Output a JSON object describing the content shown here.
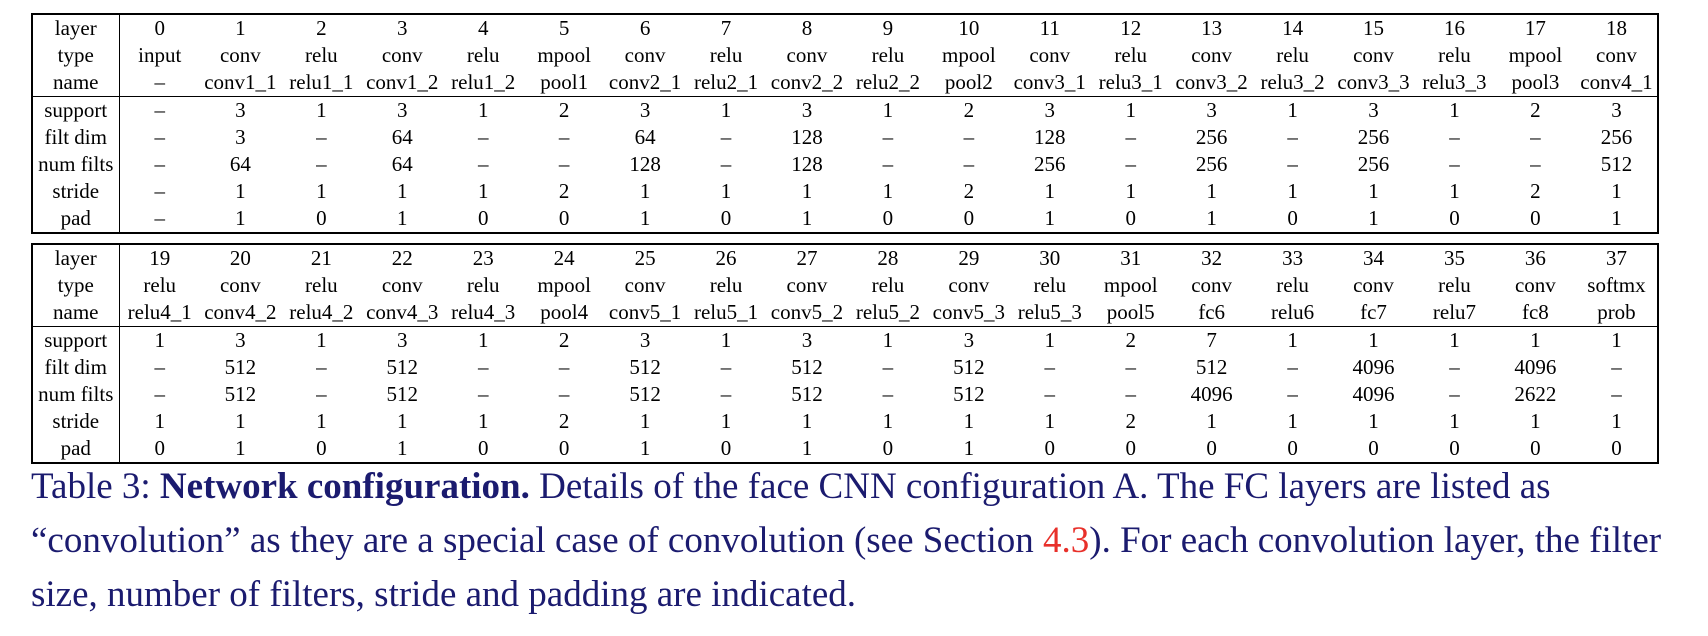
{
  "tables": [
    {
      "id": "top",
      "header_rows": [
        {
          "label": "layer",
          "cells": [
            "0",
            "1",
            "2",
            "3",
            "4",
            "5",
            "6",
            "7",
            "8",
            "9",
            "10",
            "11",
            "12",
            "13",
            "14",
            "15",
            "16",
            "17",
            "18"
          ]
        },
        {
          "label": "type",
          "cells": [
            "input",
            "conv",
            "relu",
            "conv",
            "relu",
            "mpool",
            "conv",
            "relu",
            "conv",
            "relu",
            "mpool",
            "conv",
            "relu",
            "conv",
            "relu",
            "conv",
            "relu",
            "mpool",
            "conv"
          ]
        },
        {
          "label": "name",
          "cells": [
            "–",
            "conv1_1",
            "relu1_1",
            "conv1_2",
            "relu1_2",
            "pool1",
            "conv2_1",
            "relu2_1",
            "conv2_2",
            "relu2_2",
            "pool2",
            "conv3_1",
            "relu3_1",
            "conv3_2",
            "relu3_2",
            "conv3_3",
            "relu3_3",
            "pool3",
            "conv4_1"
          ]
        }
      ],
      "param_rows": [
        {
          "label": "support",
          "cells": [
            "–",
            "3",
            "1",
            "3",
            "1",
            "2",
            "3",
            "1",
            "3",
            "1",
            "2",
            "3",
            "1",
            "3",
            "1",
            "3",
            "1",
            "2",
            "3"
          ]
        },
        {
          "label": "filt dim",
          "cells": [
            "–",
            "3",
            "–",
            "64",
            "–",
            "–",
            "64",
            "–",
            "128",
            "–",
            "–",
            "128",
            "–",
            "256",
            "–",
            "256",
            "–",
            "–",
            "256"
          ]
        },
        {
          "label": "num filts",
          "cells": [
            "–",
            "64",
            "–",
            "64",
            "–",
            "–",
            "128",
            "–",
            "128",
            "–",
            "–",
            "256",
            "–",
            "256",
            "–",
            "256",
            "–",
            "–",
            "512"
          ]
        },
        {
          "label": "stride",
          "cells": [
            "–",
            "1",
            "1",
            "1",
            "1",
            "2",
            "1",
            "1",
            "1",
            "1",
            "2",
            "1",
            "1",
            "1",
            "1",
            "1",
            "1",
            "2",
            "1"
          ]
        },
        {
          "label": "pad",
          "cells": [
            "–",
            "1",
            "0",
            "1",
            "0",
            "0",
            "1",
            "0",
            "1",
            "0",
            "0",
            "1",
            "0",
            "1",
            "0",
            "1",
            "0",
            "0",
            "1"
          ]
        }
      ]
    },
    {
      "id": "bottom",
      "header_rows": [
        {
          "label": "layer",
          "cells": [
            "19",
            "20",
            "21",
            "22",
            "23",
            "24",
            "25",
            "26",
            "27",
            "28",
            "29",
            "30",
            "31",
            "32",
            "33",
            "34",
            "35",
            "36",
            "37"
          ]
        },
        {
          "label": "type",
          "cells": [
            "relu",
            "conv",
            "relu",
            "conv",
            "relu",
            "mpool",
            "conv",
            "relu",
            "conv",
            "relu",
            "conv",
            "relu",
            "mpool",
            "conv",
            "relu",
            "conv",
            "relu",
            "conv",
            "softmx"
          ]
        },
        {
          "label": "name",
          "cells": [
            "relu4_1",
            "conv4_2",
            "relu4_2",
            "conv4_3",
            "relu4_3",
            "pool4",
            "conv5_1",
            "relu5_1",
            "conv5_2",
            "relu5_2",
            "conv5_3",
            "relu5_3",
            "pool5",
            "fc6",
            "relu6",
            "fc7",
            "relu7",
            "fc8",
            "prob"
          ]
        }
      ],
      "param_rows": [
        {
          "label": "support",
          "cells": [
            "1",
            "3",
            "1",
            "3",
            "1",
            "2",
            "3",
            "1",
            "3",
            "1",
            "3",
            "1",
            "2",
            "7",
            "1",
            "1",
            "1",
            "1",
            "1"
          ]
        },
        {
          "label": "filt dim",
          "cells": [
            "–",
            "512",
            "–",
            "512",
            "–",
            "–",
            "512",
            "–",
            "512",
            "–",
            "512",
            "–",
            "–",
            "512",
            "–",
            "4096",
            "–",
            "4096",
            "–"
          ]
        },
        {
          "label": "num filts",
          "cells": [
            "–",
            "512",
            "–",
            "512",
            "–",
            "–",
            "512",
            "–",
            "512",
            "–",
            "512",
            "–",
            "–",
            "4096",
            "–",
            "4096",
            "–",
            "2622",
            "–"
          ]
        },
        {
          "label": "stride",
          "cells": [
            "1",
            "1",
            "1",
            "1",
            "1",
            "2",
            "1",
            "1",
            "1",
            "1",
            "1",
            "1",
            "2",
            "1",
            "1",
            "1",
            "1",
            "1",
            "1"
          ]
        },
        {
          "label": "pad",
          "cells": [
            "0",
            "1",
            "0",
            "1",
            "0",
            "0",
            "1",
            "0",
            "1",
            "0",
            "1",
            "0",
            "0",
            "0",
            "0",
            "0",
            "0",
            "0",
            "0"
          ]
        }
      ]
    }
  ],
  "caption": {
    "prefix": "Table 3: ",
    "bold": "Network configuration.",
    "text_1": " Details of the face CNN configuration A. The FC layers are listed as “convolution” as they are a special case of convolution (see Section ",
    "link": "4.3",
    "text_2": "). For each convolution layer, the filter size, number of filters, stride and padding are indicated."
  },
  "colors": {
    "caption_text": "#1b1b6f",
    "section_link": "#e8302a"
  }
}
